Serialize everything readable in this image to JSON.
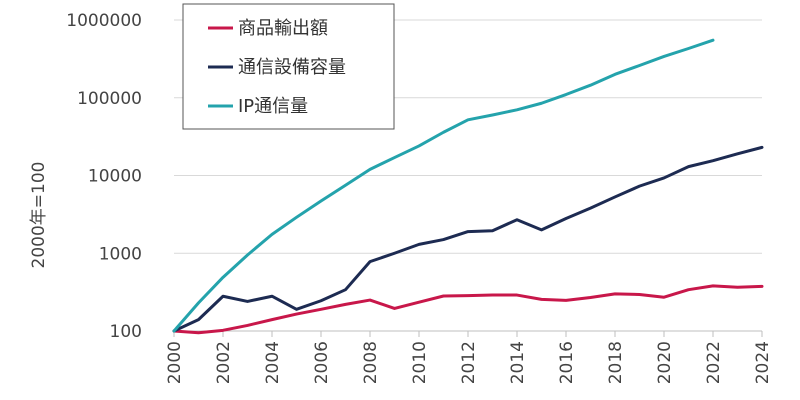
{
  "chart_data": {
    "type": "line",
    "ylabel": "2000年=100",
    "yscale": "log",
    "ylim": [
      100,
      1000000
    ],
    "yticks": [
      100,
      1000,
      10000,
      100000,
      1000000
    ],
    "ytick_labels": [
      "100",
      "1000",
      "10000",
      "100000",
      "1000000"
    ],
    "xlim": [
      2000,
      2024
    ],
    "xticks": [
      2000,
      2002,
      2004,
      2006,
      2008,
      2010,
      2012,
      2014,
      2016,
      2018,
      2020,
      2022,
      2024
    ],
    "xtick_labels": [
      "2000",
      "2002",
      "2004",
      "2006",
      "2008",
      "2010",
      "2012",
      "2014",
      "2016",
      "2018",
      "2020",
      "2022",
      "2024"
    ],
    "grid": true,
    "legend_position": "top-left",
    "series": [
      {
        "name": "商品輸出額",
        "color": "#c8174a",
        "x": [
          2000,
          2001,
          2002,
          2003,
          2004,
          2005,
          2006,
          2007,
          2008,
          2009,
          2010,
          2011,
          2012,
          2013,
          2014,
          2015,
          2016,
          2017,
          2018,
          2019,
          2020,
          2021,
          2022,
          2023,
          2024
        ],
        "values": [
          100,
          95,
          102,
          118,
          140,
          165,
          190,
          220,
          250,
          195,
          235,
          282,
          285,
          290,
          290,
          255,
          248,
          270,
          300,
          295,
          272,
          340,
          380,
          365,
          375
        ]
      },
      {
        "name": "通信設備容量",
        "color": "#1d2b52",
        "x": [
          2000,
          2001,
          2002,
          2003,
          2004,
          2005,
          2006,
          2007,
          2008,
          2009,
          2010,
          2011,
          2012,
          2013,
          2014,
          2015,
          2016,
          2017,
          2018,
          2019,
          2020,
          2021,
          2022,
          2023,
          2024
        ],
        "values": [
          100,
          140,
          280,
          240,
          280,
          190,
          245,
          340,
          780,
          1000,
          1300,
          1500,
          1900,
          1950,
          2700,
          2000,
          2800,
          3800,
          5300,
          7300,
          9300,
          13000,
          15500,
          19000,
          23000
        ]
      },
      {
        "name": "IP通信量",
        "color": "#24a3ac",
        "x": [
          2000,
          2001,
          2002,
          2003,
          2004,
          2005,
          2006,
          2007,
          2008,
          2009,
          2010,
          2011,
          2012,
          2013,
          2014,
          2015,
          2016,
          2017,
          2018,
          2019,
          2020,
          2021,
          2022
        ],
        "values": [
          100,
          230,
          490,
          950,
          1750,
          2900,
          4700,
          7500,
          12000,
          17000,
          24000,
          36000,
          52000,
          60000,
          70000,
          85000,
          110000,
          145000,
          200000,
          260000,
          340000,
          430000,
          550000
        ]
      }
    ]
  }
}
